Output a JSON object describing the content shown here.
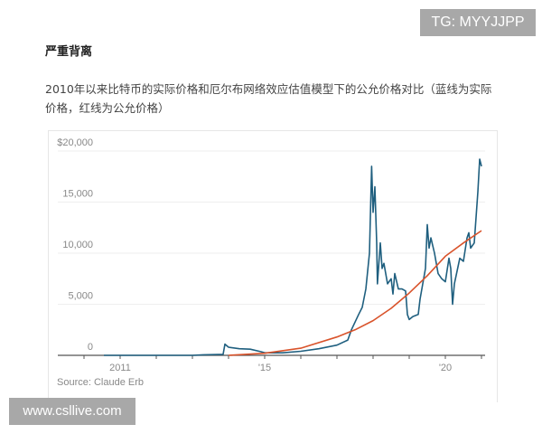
{
  "article": {
    "heading": "严重背离",
    "caption": "2010年以来比特币的实际价格和厄尔布网络效应估值模型下的公允价格对比（蓝线为实际价格，红线为公允价格）"
  },
  "watermarks": {
    "tg": "TG: MYYJJPP",
    "site": "www.csllive.com"
  },
  "chart_data": {
    "type": "line",
    "title": "",
    "xlabel": "",
    "ylabel": "",
    "source": "Source: Claude Erb",
    "xlim": [
      2010,
      2021.1
    ],
    "ylim": [
      0,
      20000
    ],
    "y_ticks": [
      {
        "value": 0,
        "label": "0"
      },
      {
        "value": 5000,
        "label": "5,000"
      },
      {
        "value": 10000,
        "label": "10,000"
      },
      {
        "value": 15000,
        "label": "15,000"
      },
      {
        "value": 20000,
        "label": "$20,000"
      }
    ],
    "x_ticks": [
      {
        "value": 2011,
        "label": "2011"
      },
      {
        "value": 2015,
        "label": "'15"
      },
      {
        "value": 2020,
        "label": "'20"
      }
    ],
    "minor_x_ticks": [
      2010,
      2011,
      2012,
      2013,
      2014,
      2015,
      2016,
      2017,
      2018,
      2019,
      2020,
      2021
    ],
    "grid": "horizontal",
    "series": [
      {
        "color": "#1f5f7f",
        "points": [
          [
            2010.55,
            0
          ],
          [
            2013.0,
            0
          ],
          [
            2013.3,
            50
          ],
          [
            2013.85,
            100
          ],
          [
            2013.9,
            1100
          ],
          [
            2014.0,
            800
          ],
          [
            2014.3,
            650
          ],
          [
            2014.6,
            600
          ],
          [
            2014.9,
            350
          ],
          [
            2015.0,
            250
          ],
          [
            2015.5,
            250
          ],
          [
            2016.0,
            400
          ],
          [
            2016.5,
            650
          ],
          [
            2017.0,
            1000
          ],
          [
            2017.3,
            1500
          ],
          [
            2017.4,
            2500
          ],
          [
            2017.6,
            4000
          ],
          [
            2017.7,
            4700
          ],
          [
            2017.8,
            6500
          ],
          [
            2017.9,
            10000
          ],
          [
            2017.96,
            18500
          ],
          [
            2018.0,
            14000
          ],
          [
            2018.05,
            16500
          ],
          [
            2018.1,
            11000
          ],
          [
            2018.12,
            7000
          ],
          [
            2018.2,
            11000
          ],
          [
            2018.25,
            8500
          ],
          [
            2018.3,
            9000
          ],
          [
            2018.4,
            7000
          ],
          [
            2018.5,
            7500
          ],
          [
            2018.55,
            6000
          ],
          [
            2018.6,
            8000
          ],
          [
            2018.7,
            6500
          ],
          [
            2018.8,
            6500
          ],
          [
            2018.9,
            6300
          ],
          [
            2018.95,
            4000
          ],
          [
            2019.0,
            3500
          ],
          [
            2019.1,
            3800
          ],
          [
            2019.25,
            4000
          ],
          [
            2019.3,
            5500
          ],
          [
            2019.45,
            8500
          ],
          [
            2019.5,
            12800
          ],
          [
            2019.55,
            10500
          ],
          [
            2019.6,
            11500
          ],
          [
            2019.7,
            10000
          ],
          [
            2019.75,
            9000
          ],
          [
            2019.8,
            8000
          ],
          [
            2019.9,
            7500
          ],
          [
            2020.0,
            7200
          ],
          [
            2020.1,
            9500
          ],
          [
            2020.15,
            8500
          ],
          [
            2020.2,
            5000
          ],
          [
            2020.25,
            7000
          ],
          [
            2020.4,
            9500
          ],
          [
            2020.5,
            9200
          ],
          [
            2020.6,
            11500
          ],
          [
            2020.65,
            12000
          ],
          [
            2020.7,
            10500
          ],
          [
            2020.8,
            11000
          ],
          [
            2020.85,
            13500
          ],
          [
            2020.9,
            16000
          ],
          [
            2020.95,
            19200
          ],
          [
            2021.0,
            18500
          ]
        ]
      },
      {
        "color": "#d9532b",
        "points": [
          [
            2014.0,
            0
          ],
          [
            2015.0,
            200
          ],
          [
            2016.0,
            700
          ],
          [
            2017.0,
            1800
          ],
          [
            2017.5,
            2500
          ],
          [
            2018.0,
            3400
          ],
          [
            2018.5,
            4600
          ],
          [
            2019.0,
            6100
          ],
          [
            2019.5,
            7800
          ],
          [
            2020.0,
            9700
          ],
          [
            2020.5,
            11000
          ],
          [
            2021.0,
            12200
          ]
        ]
      }
    ]
  }
}
